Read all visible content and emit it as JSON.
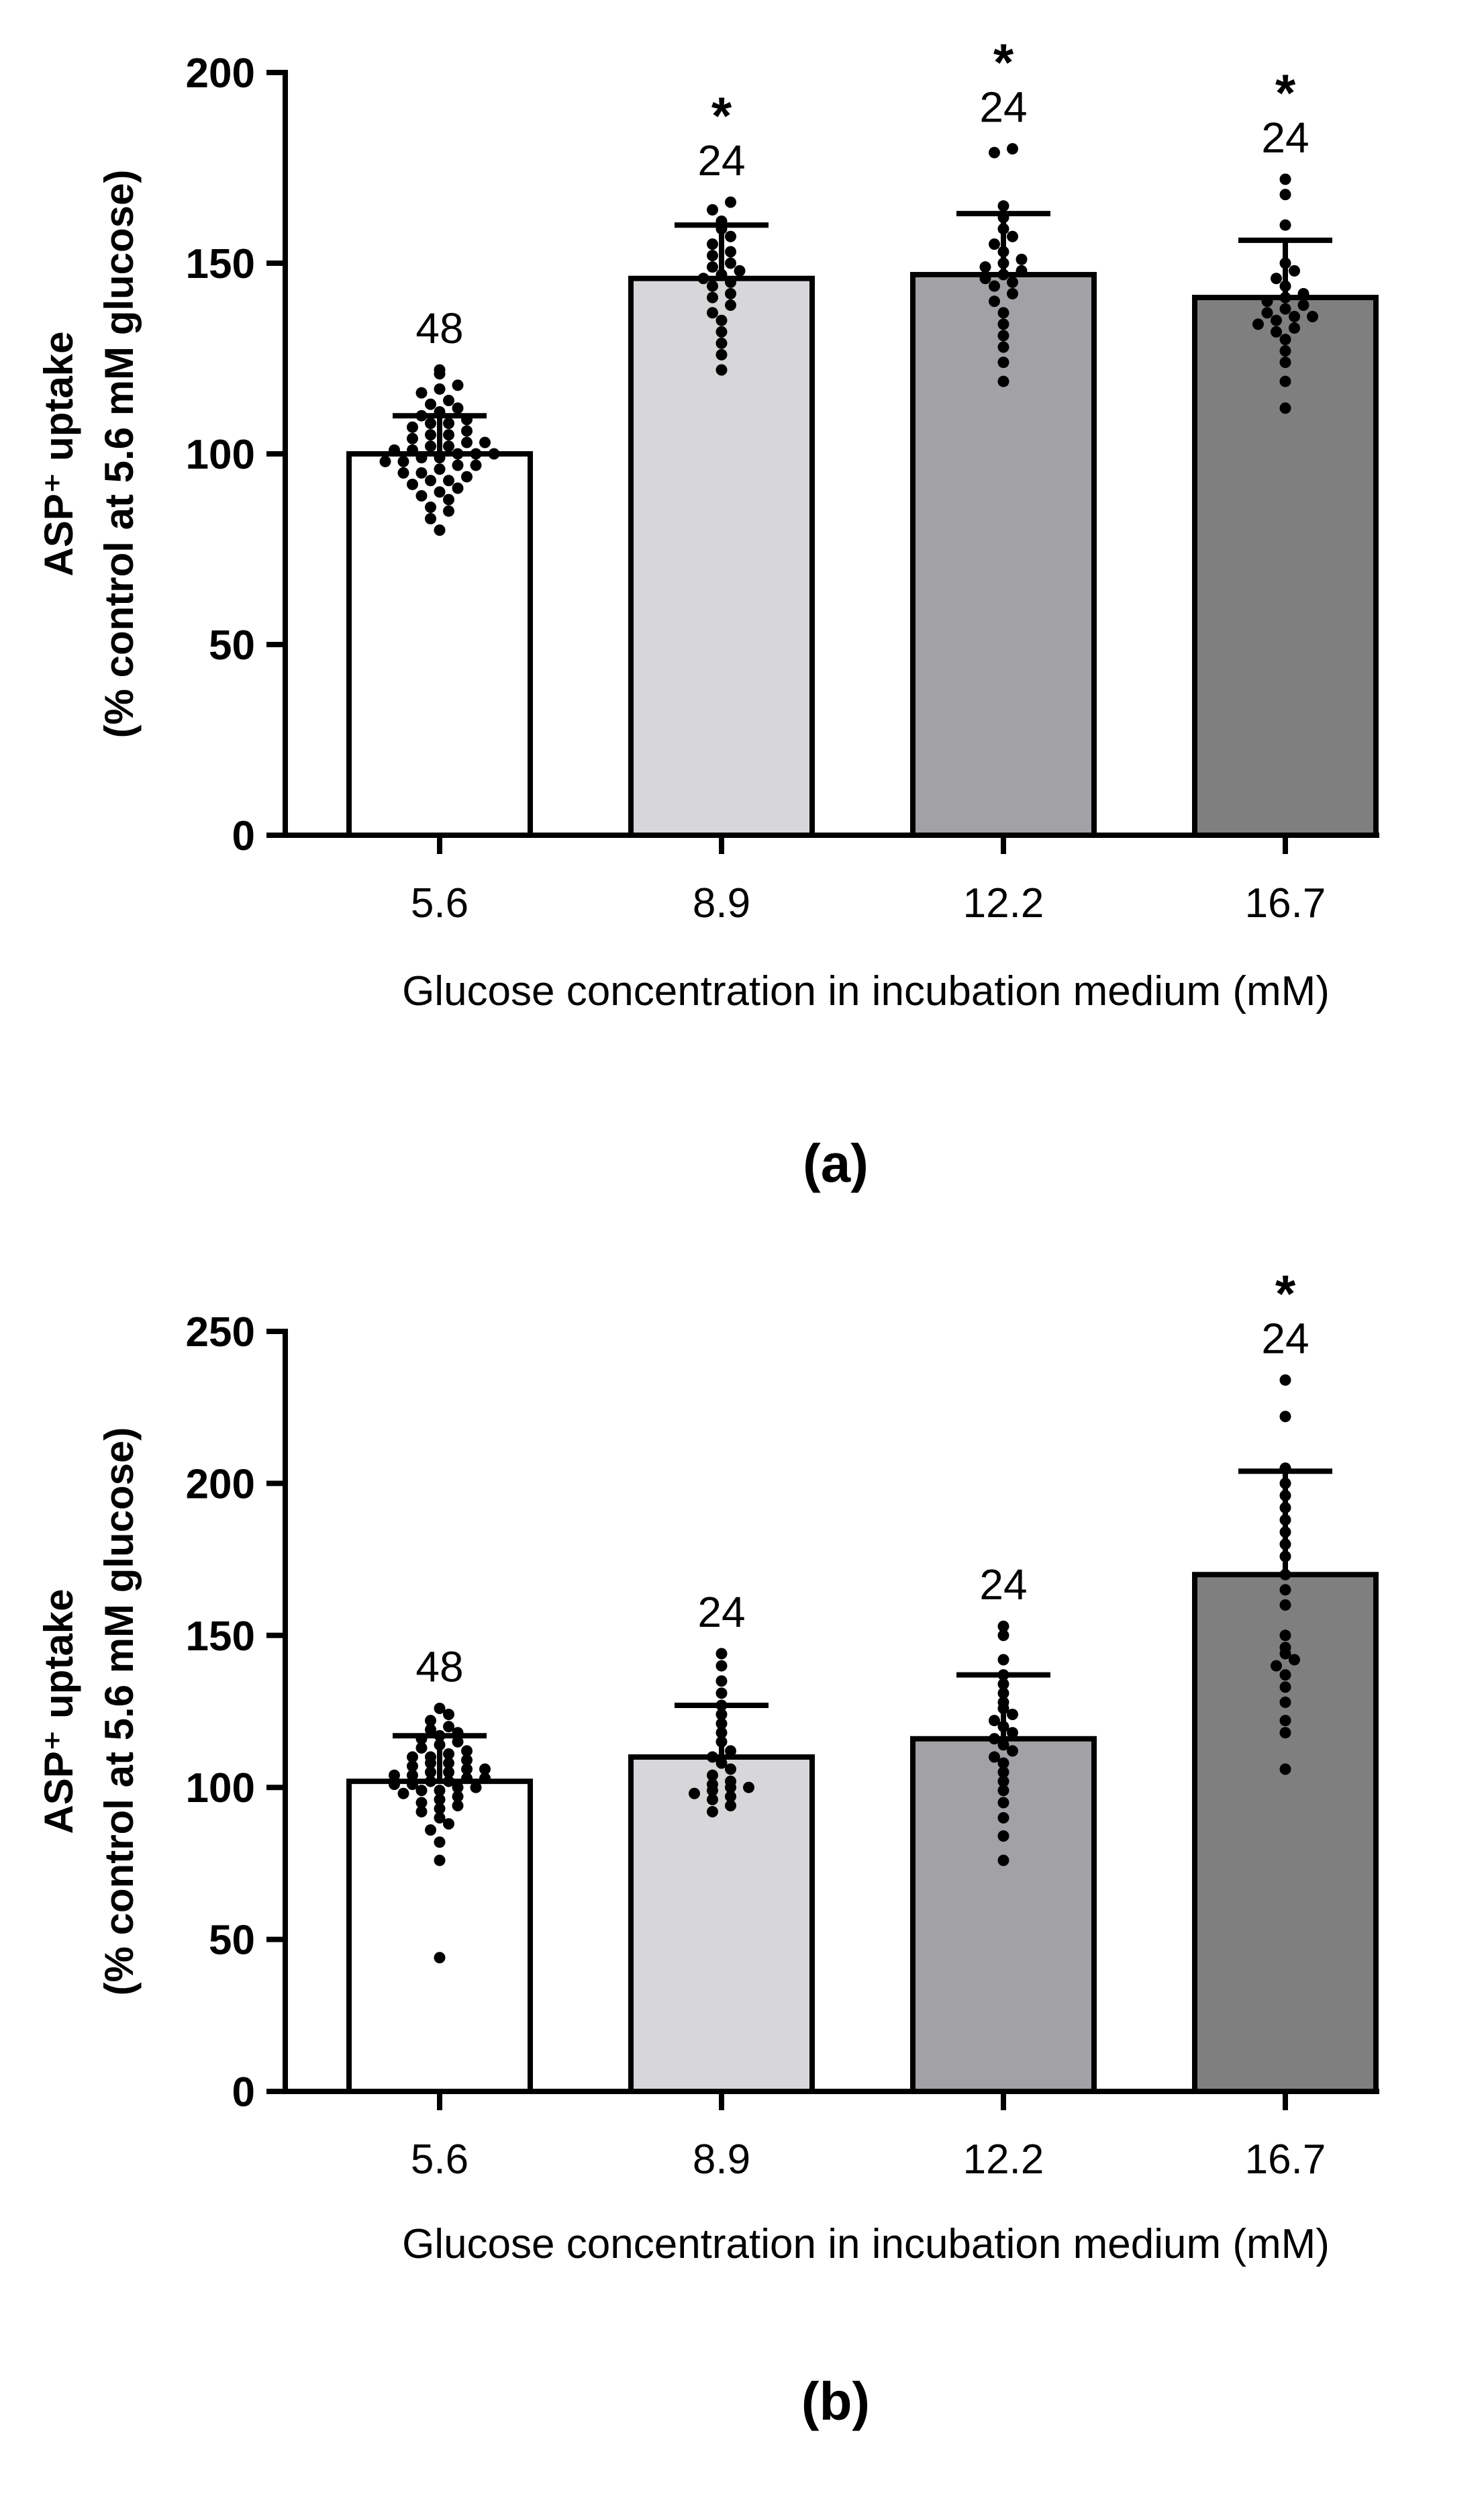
{
  "chart_data": [
    {
      "panel_label": "(a)",
      "type": "bar",
      "categories": [
        "5.6",
        "8.9",
        "12.2",
        "16.7"
      ],
      "values": [
        100,
        146,
        147,
        141
      ],
      "error_upper": [
        110,
        160,
        163,
        156
      ],
      "n_labels": [
        "48",
        "24",
        "24",
        "24"
      ],
      "significance": [
        "",
        "*",
        "*",
        "*"
      ],
      "bar_colors": [
        "#ffffff",
        "#d7d7d9",
        "#a2a2a6",
        "#7f7f7f"
      ],
      "ylim": [
        0,
        200
      ],
      "yticks": [
        0,
        50,
        100,
        150,
        200
      ],
      "ylabel": "ASP⁺ uptake",
      "ylabel2": "(% control at 5.6 mM glucose)",
      "xlabel": "Glucose concentration in incubation medium (mM)",
      "points": [
        [
          80,
          83,
          85,
          86,
          88,
          89,
          90,
          91,
          92,
          93,
          93,
          94,
          95,
          95,
          96,
          97,
          97,
          98,
          98,
          99,
          99,
          100,
          100,
          100,
          101,
          101,
          102,
          102,
          103,
          103,
          104,
          105,
          105,
          106,
          107,
          108,
          108,
          109,
          110,
          111,
          112,
          113,
          114,
          116,
          117,
          118,
          121,
          122
        ],
        [
          122,
          126,
          129,
          132,
          135,
          137,
          139,
          141,
          142,
          144,
          145,
          146,
          147,
          148,
          149,
          150,
          152,
          153,
          155,
          157,
          159,
          161,
          164,
          166
        ],
        [
          119,
          124,
          128,
          131,
          134,
          137,
          140,
          142,
          144,
          145,
          146,
          147,
          148,
          149,
          150,
          151,
          153,
          155,
          157,
          159,
          162,
          165,
          179,
          180
        ],
        [
          112,
          119,
          124,
          127,
          130,
          132,
          133,
          134,
          135,
          136,
          136,
          137,
          138,
          139,
          140,
          141,
          142,
          144,
          146,
          148,
          150,
          160,
          168,
          172
        ]
      ]
    },
    {
      "panel_label": "(b)",
      "type": "bar",
      "categories": [
        "5.6",
        "8.9",
        "12.2",
        "16.7"
      ],
      "values": [
        102,
        110,
        116,
        170
      ],
      "error_upper": [
        117,
        127,
        137,
        204
      ],
      "n_labels": [
        "48",
        "24",
        "24",
        "24"
      ],
      "significance": [
        "",
        "",
        "",
        "*"
      ],
      "bar_colors": [
        "#ffffff",
        "#d7d7d9",
        "#a2a2a6",
        "#7f7f7f"
      ],
      "ylim": [
        0,
        250
      ],
      "yticks": [
        0,
        50,
        100,
        150,
        200,
        250
      ],
      "ylabel": "ASP⁺ uptake",
      "ylabel2": "(% control at 5.6 mM glucose)",
      "xlabel": "Glucose concentration in incubation medium (mM)",
      "points": [
        [
          44,
          76,
          82,
          86,
          88,
          90,
          92,
          93,
          94,
          95,
          96,
          97,
          98,
          99,
          99,
          100,
          100,
          101,
          101,
          102,
          102,
          103,
          103,
          104,
          104,
          105,
          105,
          106,
          106,
          107,
          108,
          108,
          109,
          110,
          110,
          111,
          112,
          113,
          114,
          115,
          116,
          117,
          118,
          119,
          120,
          122,
          124,
          126
        ],
        [
          92,
          94,
          96,
          97,
          98,
          99,
          100,
          100,
          101,
          102,
          104,
          106,
          108,
          110,
          112,
          115,
          118,
          121,
          124,
          127,
          131,
          135,
          140,
          144
        ],
        [
          76,
          84,
          90,
          95,
          99,
          102,
          105,
          108,
          110,
          112,
          114,
          116,
          118,
          120,
          122,
          124,
          126,
          128,
          131,
          134,
          137,
          142,
          150,
          153
        ],
        [
          106,
          118,
          122,
          128,
          133,
          137,
          140,
          142,
          144,
          146,
          150,
          160,
          165,
          170,
          176,
          180,
          184,
          188,
          192,
          196,
          200,
          205,
          222,
          234
        ]
      ]
    }
  ]
}
